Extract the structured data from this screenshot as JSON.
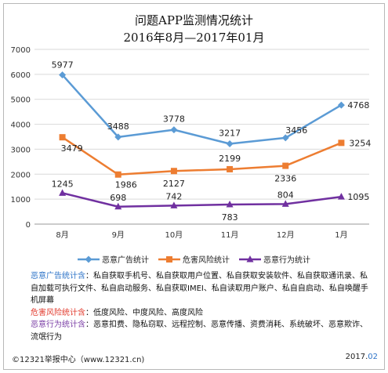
{
  "title_line1": "问题APP监测情况统计",
  "title_line2": "2016年8月—2017年01月",
  "chart_data": {
    "type": "line",
    "categories": [
      "8月",
      "9月",
      "10月",
      "11月",
      "12月",
      "1月"
    ],
    "ylim": [
      0,
      7000
    ],
    "yticks": [
      0,
      1000,
      2000,
      3000,
      4000,
      5000,
      6000,
      7000
    ],
    "grid": true,
    "legend_position": "bottom",
    "series": [
      {
        "name": "恶意广告统计",
        "color": "#5b9bd5",
        "values": [
          5977,
          3488,
          3778,
          3217,
          3456,
          4768
        ]
      },
      {
        "name": "危害风险统计",
        "color": "#ed7d31",
        "values": [
          3479,
          1986,
          2127,
          2199,
          2336,
          3254
        ]
      },
      {
        "name": "恶意行为统计",
        "color": "#7030a0",
        "values": [
          1245,
          698,
          742,
          783,
          804,
          1095
        ]
      }
    ]
  },
  "notes": {
    "ad_key": "恶意广告统计含",
    "ad_text": "：私自获取手机号、私自获取用户位置、私自获取安装软件、私自获取通讯录、私自加载可执行文件、私自启动服务、私自获取IMEI、私自读取用户账户、私自自启动、私自唤醒手机屏幕",
    "risk_key": "危害风险统计含",
    "risk_text": "：低度风险、中度风险、高度风险",
    "behavior_key": "恶意行为统计含",
    "behavior_text": "：恶意扣费、隐私窃取、远程控制、恶意传播、资费消耗、系统破坏、恶意欺诈、流氓行为"
  },
  "footer": {
    "left": "©12321举报中心（www.12321.cn)",
    "right_year": "2017.",
    "right_month": "02"
  }
}
